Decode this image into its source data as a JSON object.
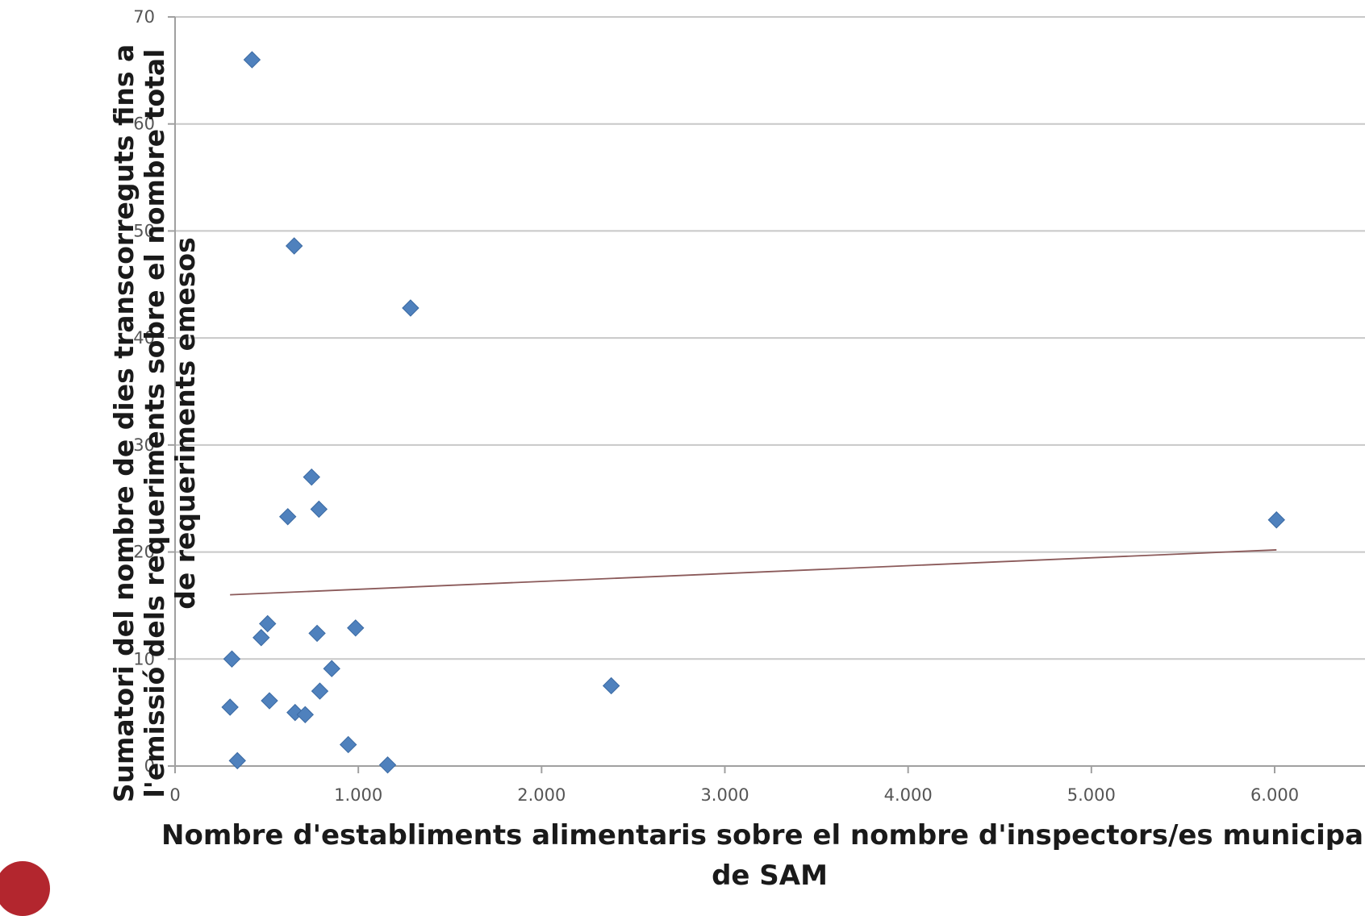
{
  "chart_data": {
    "type": "scatter",
    "xlabel_lines": [
      "Nombre d'establiments alimentaris sobre el nombre d'inspectors/es municipals",
      "de SAM"
    ],
    "ylabel_lines": [
      "Sumatori del nombre de dies transcorreguts fins a",
      "l'emissió dels requeriments sobre el nombre total",
      "de requeriments emesos"
    ],
    "xlim": [
      0,
      6500
    ],
    "ylim": [
      0,
      70
    ],
    "x_ticks": [
      0,
      1000,
      2000,
      3000,
      4000,
      5000,
      6000
    ],
    "x_tick_labels": [
      "0",
      "1.000",
      "2.000",
      "3.000",
      "4.000",
      "5.000",
      "6.000"
    ],
    "y_ticks": [
      0,
      10,
      20,
      30,
      40,
      50,
      60,
      70
    ],
    "y_tick_labels": [
      "0",
      "10",
      "20",
      "30",
      "40",
      "50",
      "60",
      "70"
    ],
    "grid": "horizontal",
    "marker_color": "#4f81bd",
    "trendline_color": "#8b5a5a",
    "points": [
      {
        "x": 420,
        "y": 66
      },
      {
        "x": 650,
        "y": 48.6
      },
      {
        "x": 1285,
        "y": 42.8
      },
      {
        "x": 745,
        "y": 27
      },
      {
        "x": 785,
        "y": 24
      },
      {
        "x": 615,
        "y": 23.3
      },
      {
        "x": 505,
        "y": 13.3
      },
      {
        "x": 470,
        "y": 12
      },
      {
        "x": 775,
        "y": 12.4
      },
      {
        "x": 985,
        "y": 12.9
      },
      {
        "x": 310,
        "y": 10
      },
      {
        "x": 855,
        "y": 9.1
      },
      {
        "x": 790,
        "y": 7
      },
      {
        "x": 515,
        "y": 6.1
      },
      {
        "x": 300,
        "y": 5.5
      },
      {
        "x": 655,
        "y": 5
      },
      {
        "x": 710,
        "y": 4.8
      },
      {
        "x": 945,
        "y": 2
      },
      {
        "x": 340,
        "y": 0.5
      },
      {
        "x": 1160,
        "y": 0.1
      },
      {
        "x": 2380,
        "y": 7.5
      },
      {
        "x": 6010,
        "y": 23
      }
    ],
    "trendline": {
      "x": [
        300,
        6010
      ],
      "y": [
        16,
        20.2
      ]
    }
  }
}
